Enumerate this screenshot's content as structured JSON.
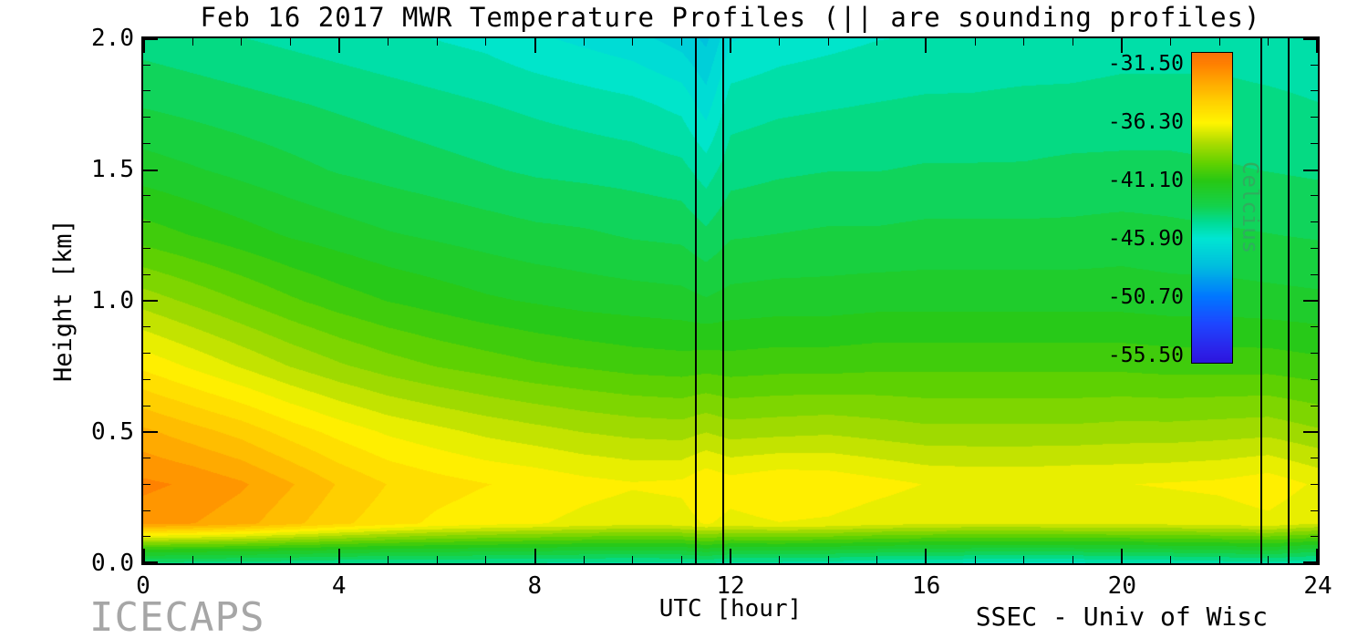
{
  "footer": {
    "left": "ICECAPS",
    "right": "SSEC - Univ of Wisc"
  },
  "colors": {
    "background": "#ffffff",
    "axis": "#000000",
    "title_text": "#000000",
    "icecaps_text": "#a6a6a6",
    "celcius_text": "#2fae5e"
  },
  "chart_data": {
    "type": "heatmap",
    "title": "Feb 16 2017 MWR Temperature Profiles (|| are sounding profiles)",
    "xlabel": "UTC [hour]",
    "ylabel": "Height [km]",
    "colorbar_label": "Celcius",
    "x_range": [
      0,
      24
    ],
    "y_range": [
      0,
      2
    ],
    "x_ticks_major": [
      0,
      4,
      8,
      12,
      16,
      20,
      24
    ],
    "x_tick_labels": [
      "0",
      "4",
      "8",
      "12",
      "16",
      "20",
      "24"
    ],
    "x_minor_step": 1,
    "y_ticks_major": [
      0,
      0.5,
      1,
      1.5,
      2
    ],
    "y_tick_labels": [
      "0.0",
      "0.5",
      "1.0",
      "1.5",
      "2.0"
    ],
    "y_minor_step": 0.1,
    "grid": false,
    "legend_position": "none",
    "contour_interval_c": 0.75,
    "sounding_lines_utc": [
      11.3,
      11.85,
      22.85,
      23.4
    ],
    "colorbar_ticks": [
      -31.5,
      -36.3,
      -41.1,
      -45.9,
      -50.7,
      -55.5
    ],
    "colorbar_tick_labels": [
      "-31.50",
      "-36.30",
      "-41.10",
      "-45.90",
      "-50.70",
      "-55.50"
    ],
    "colorbar_range_top_to_bottom": [
      -30.5,
      -56.2
    ],
    "colormap_stops": [
      [
        -58.0,
        "#2800c8"
      ],
      [
        -55.5,
        "#2d1ee6"
      ],
      [
        -53.0,
        "#1e46ff"
      ],
      [
        -50.7,
        "#0078ff"
      ],
      [
        -48.2,
        "#00bede"
      ],
      [
        -45.9,
        "#00e6d2"
      ],
      [
        -44.6,
        "#00dc96"
      ],
      [
        -43.2,
        "#14d24b"
      ],
      [
        -41.1,
        "#28c814"
      ],
      [
        -39.6,
        "#64d200"
      ],
      [
        -38.0,
        "#aadc00"
      ],
      [
        -36.3,
        "#fff500"
      ],
      [
        -34.6,
        "#ffd200"
      ],
      [
        -33.0,
        "#ffaa00"
      ],
      [
        -31.5,
        "#ff8200"
      ],
      [
        -29.0,
        "#f05a14"
      ]
    ],
    "x_hours": [
      0,
      1,
      2,
      3,
      4,
      5,
      6,
      7,
      8,
      9,
      10,
      11,
      11.5,
      12,
      13,
      14,
      15,
      16,
      17,
      18,
      19,
      20,
      21,
      22,
      23,
      24
    ],
    "y_heights_km": [
      0,
      0.05,
      0.15,
      0.3,
      0.5,
      0.75,
      1.0,
      1.25,
      1.5,
      1.75,
      2.0
    ],
    "values_c": [
      [
        -44.0,
        -44.1,
        -44.2,
        -44.3,
        -44.5,
        -44.5,
        -44.5,
        -44.6,
        -44.6,
        -44.7,
        -44.8,
        -44.7,
        -44.5,
        -44.8,
        -44.8,
        -44.9,
        -45.2,
        -45.3,
        -45.4,
        -45.4,
        -45.4,
        -45.3,
        -45.2,
        -45.0,
        -44.8,
        -45.2
      ],
      [
        -41.0,
        -41.1,
        -41.2,
        -41.4,
        -41.6,
        -41.8,
        -41.9,
        -42.0,
        -42.1,
        -42.2,
        -42.3,
        -42.2,
        -41.9,
        -42.2,
        -42.2,
        -42.3,
        -42.5,
        -42.6,
        -42.7,
        -42.7,
        -42.7,
        -42.6,
        -42.5,
        -42.4,
        -42.2,
        -42.7
      ],
      [
        -32.3,
        -32.6,
        -33.1,
        -33.9,
        -34.7,
        -35.3,
        -35.8,
        -36.1,
        -36.3,
        -36.6,
        -36.8,
        -36.7,
        -36.3,
        -36.6,
        -36.4,
        -36.5,
        -36.8,
        -37.0,
        -37.1,
        -37.1,
        -37.0,
        -37.0,
        -36.9,
        -36.8,
        -36.6,
        -37.1
      ],
      [
        -31.7,
        -32.0,
        -32.5,
        -33.3,
        -34.2,
        -34.9,
        -35.3,
        -35.6,
        -35.8,
        -36.1,
        -36.3,
        -36.2,
        -35.7,
        -36.0,
        -35.7,
        -35.8,
        -36.1,
        -36.4,
        -36.5,
        -36.5,
        -36.4,
        -36.4,
        -36.3,
        -36.2,
        -35.9,
        -36.5
      ],
      [
        -33.2,
        -33.8,
        -34.4,
        -35.2,
        -35.9,
        -36.5,
        -36.9,
        -37.3,
        -37.6,
        -37.9,
        -38.1,
        -38.2,
        -37.9,
        -38.2,
        -38.1,
        -38.0,
        -38.2,
        -38.4,
        -38.4,
        -38.4,
        -38.4,
        -38.3,
        -38.3,
        -38.2,
        -38.1,
        -38.5
      ],
      [
        -35.8,
        -36.5,
        -37.2,
        -37.9,
        -38.5,
        -39.0,
        -39.4,
        -39.7,
        -40.0,
        -40.2,
        -40.4,
        -40.5,
        -40.4,
        -40.5,
        -40.4,
        -40.4,
        -40.3,
        -40.3,
        -40.3,
        -40.3,
        -40.3,
        -40.3,
        -40.4,
        -40.4,
        -40.4,
        -40.6
      ],
      [
        -38.2,
        -38.8,
        -39.4,
        -40.0,
        -40.5,
        -40.9,
        -41.2,
        -41.5,
        -41.7,
        -41.9,
        -42.0,
        -42.1,
        -42.3,
        -42.1,
        -42.0,
        -42.0,
        -41.9,
        -41.9,
        -41.9,
        -41.9,
        -41.9,
        -41.9,
        -42.0,
        -42.0,
        -42.1,
        -42.2
      ],
      [
        -40.5,
        -40.9,
        -41.3,
        -41.7,
        -42.0,
        -42.3,
        -42.5,
        -42.7,
        -42.9,
        -43.0,
        -43.2,
        -43.3,
        -43.7,
        -43.2,
        -43.1,
        -43.0,
        -43.0,
        -42.9,
        -42.9,
        -42.9,
        -42.9,
        -42.8,
        -42.9,
        -43.0,
        -43.1,
        -43.2
      ],
      [
        -42.0,
        -42.3,
        -42.6,
        -42.9,
        -43.2,
        -43.4,
        -43.6,
        -43.8,
        -44.0,
        -44.1,
        -44.2,
        -44.4,
        -45.0,
        -44.2,
        -44.0,
        -43.9,
        -43.9,
        -43.8,
        -43.8,
        -43.8,
        -43.7,
        -43.7,
        -43.7,
        -43.8,
        -43.9,
        -44.0
      ],
      [
        -43.2,
        -43.4,
        -43.6,
        -43.8,
        -44.0,
        -44.2,
        -44.4,
        -44.6,
        -44.8,
        -45.0,
        -45.2,
        -45.6,
        -46.5,
        -45.0,
        -44.8,
        -44.7,
        -44.6,
        -44.5,
        -44.5,
        -44.4,
        -44.4,
        -44.3,
        -44.3,
        -44.3,
        -44.4,
        -44.6
      ],
      [
        -44.2,
        -44.4,
        -44.6,
        -44.8,
        -45.0,
        -45.2,
        -45.4,
        -45.6,
        -46.0,
        -46.3,
        -46.6,
        -47.2,
        -47.8,
        -46.2,
        -45.8,
        -45.6,
        -45.4,
        -45.3,
        -45.2,
        -45.2,
        -45.1,
        -45.0,
        -45.0,
        -45.0,
        -45.2,
        -45.3
      ]
    ]
  }
}
